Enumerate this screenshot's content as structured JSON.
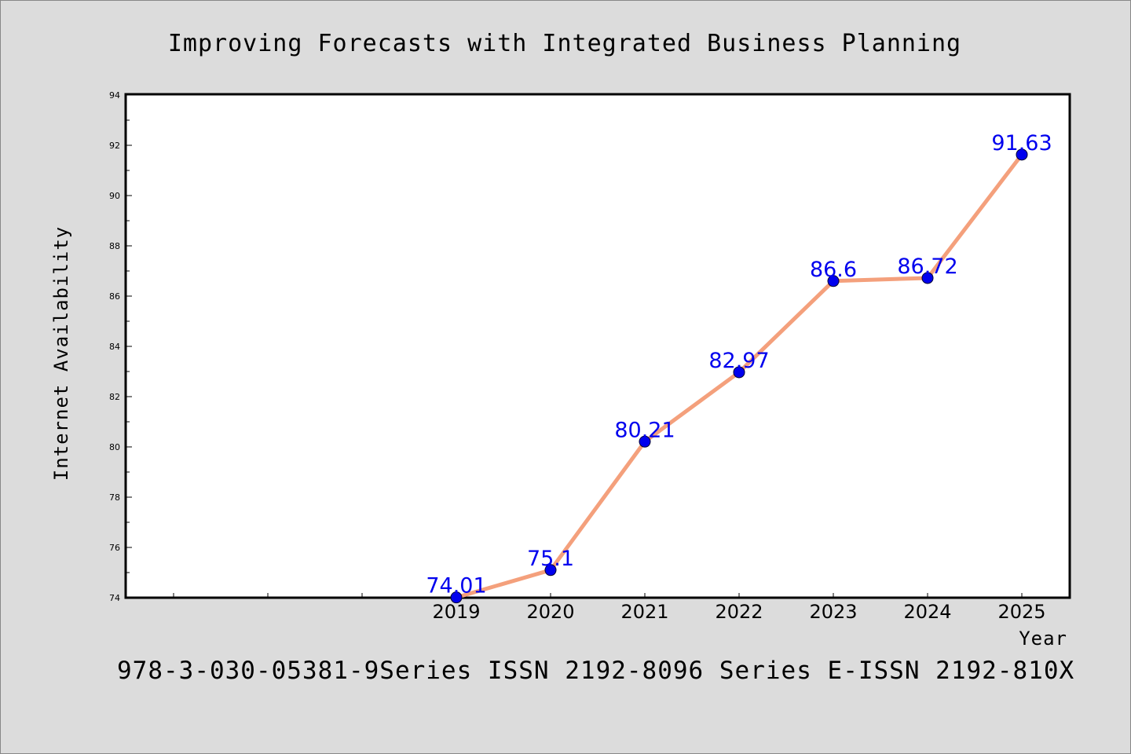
{
  "chart_data": {
    "type": "line",
    "title": "Improving Forecasts with Integrated Business Planning",
    "xlabel": "Year",
    "ylabel": "Internet Availability",
    "categories": [
      "2019",
      "2020",
      "2021",
      "2022",
      "2023",
      "2024",
      "2025"
    ],
    "values": [
      74.01,
      75.1,
      80.21,
      82.97,
      86.6,
      86.72,
      91.63
    ],
    "data_labels": [
      "74.01",
      "75.1",
      "80.21",
      "82.97",
      "86.6",
      "86.72",
      "91.63"
    ],
    "ylim": [
      74,
      94
    ],
    "yticks": [
      "74",
      "76",
      "78",
      "80",
      "82",
      "84",
      "86",
      "88",
      "90",
      "92",
      "94"
    ],
    "xlim_index": [
      -3.5,
      6.5
    ],
    "grid": false,
    "legend": false,
    "line_color": "#f4a07c",
    "marker_color": "#0000ee",
    "label_color": "#0000ee",
    "background": "#dcdcdc",
    "plot_background": "#ffffff"
  },
  "footer": {
    "text": "978-3-030-05381-9Series ISSN 2192-8096 Series E-ISSN 2192-810X"
  }
}
